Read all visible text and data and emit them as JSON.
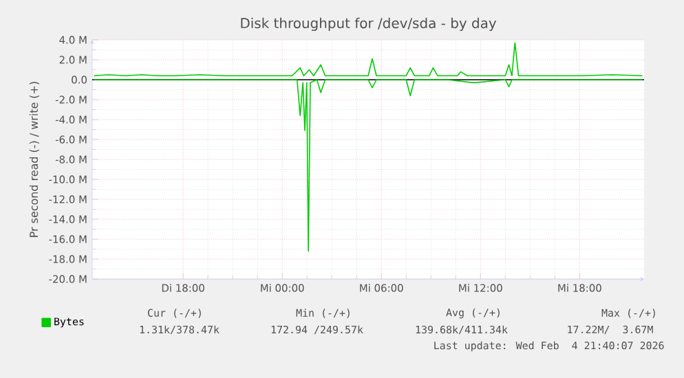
{
  "chart_data": {
    "type": "line",
    "title": "Disk throughput for /dev/sda - by day",
    "ylabel": "Pr second read (-) / write (+)",
    "xlim": [
      "2026-02-03T12:30",
      "2026-02-04T21:54"
    ],
    "ylim": [
      -20,
      4
    ],
    "xticks": [
      {
        "value": "2026-02-03T18:00",
        "label": "Di 18:00"
      },
      {
        "value": "2026-02-04T00:00",
        "label": "Mi 00:00"
      },
      {
        "value": "2026-02-04T06:00",
        "label": "Mi 06:00"
      },
      {
        "value": "2026-02-04T12:00",
        "label": "Mi 12:00"
      },
      {
        "value": "2026-02-04T18:00",
        "label": "Mi 18:00"
      }
    ],
    "yticks": [
      {
        "value": -20,
        "label": "-20.0 M"
      },
      {
        "value": -18,
        "label": "-18.0 M"
      },
      {
        "value": -16,
        "label": "-16.0 M"
      },
      {
        "value": -14,
        "label": "-14.0 M"
      },
      {
        "value": -12,
        "label": "-12.0 M"
      },
      {
        "value": -10,
        "label": "-10.0 M"
      },
      {
        "value": -8,
        "label": "-8.0 M"
      },
      {
        "value": -6,
        "label": "-6.0 M"
      },
      {
        "value": -4,
        "label": "-4.0 M"
      },
      {
        "value": -2,
        "label": "-2.0 M"
      },
      {
        "value": 0,
        "label": "0.0"
      },
      {
        "value": 2,
        "label": "2.0 M"
      },
      {
        "value": 4,
        "label": "4.0 M"
      }
    ],
    "grid": true,
    "legend": "bottom left",
    "marker": "none",
    "line_style": "solid",
    "ref_lines": [
      {
        "axis": "y",
        "value": 0,
        "color": "#000000"
      }
    ],
    "series": [
      {
        "name": "Bytes",
        "color": "#00cc00",
        "x": [
          "2026-02-03T12:36",
          "2026-02-03T13:30",
          "2026-02-03T14:30",
          "2026-02-03T15:30",
          "2026-02-03T16:30",
          "2026-02-03T17:30",
          "2026-02-03T19:00",
          "2026-02-03T20:30",
          "2026-02-03T22:00",
          "2026-02-03T23:30",
          "2026-02-04T00:36",
          "2026-02-04T01:05",
          "2026-02-04T01:18",
          "2026-02-04T01:38",
          "2026-02-04T01:54",
          "2026-02-04T02:20",
          "2026-02-04T02:36",
          "2026-02-04T04:00",
          "2026-02-04T05:12",
          "2026-02-04T05:27",
          "2026-02-04T05:42",
          "2026-02-04T07:30",
          "2026-02-04T07:45",
          "2026-02-04T08:00",
          "2026-02-04T08:54",
          "2026-02-04T09:08",
          "2026-02-04T09:24",
          "2026-02-04T10:36",
          "2026-02-04T10:48",
          "2026-02-04T11:12",
          "2026-02-04T13:30",
          "2026-02-04T13:43",
          "2026-02-04T13:54",
          "2026-02-04T14:05",
          "2026-02-04T14:18",
          "2026-02-04T16:00",
          "2026-02-04T18:00",
          "2026-02-04T20:00",
          "2026-02-04T21:48"
        ],
        "values": [
          0.4,
          0.5,
          0.4,
          0.5,
          0.4,
          0.4,
          0.5,
          0.4,
          0.4,
          0.4,
          0.4,
          1.2,
          0.4,
          1.0,
          0.4,
          1.5,
          0.4,
          0.4,
          0.4,
          2.1,
          0.4,
          0.4,
          1.2,
          0.4,
          0.4,
          1.2,
          0.4,
          0.4,
          0.8,
          0.4,
          0.4,
          1.5,
          0.4,
          3.7,
          0.4,
          0.4,
          0.4,
          0.5,
          0.4
        ]
      },
      {
        "color": "#00cc00",
        "x": [
          "2026-02-03T12:36",
          "2026-02-03T20:00",
          "2026-02-04T00:54",
          "2026-02-04T01:05",
          "2026-02-04T01:15",
          "2026-02-04T01:22",
          "2026-02-04T01:29",
          "2026-02-04T01:35",
          "2026-02-04T01:42",
          "2026-02-04T02:06",
          "2026-02-04T02:20",
          "2026-02-04T02:36",
          "2026-02-04T05:12",
          "2026-02-04T05:27",
          "2026-02-04T05:42",
          "2026-02-04T07:30",
          "2026-02-04T07:45",
          "2026-02-04T08:00",
          "2026-02-04T10:00",
          "2026-02-04T11:36",
          "2026-02-04T13:30",
          "2026-02-04T13:43",
          "2026-02-04T13:54",
          "2026-02-04T21:48"
        ],
        "values": [
          0,
          0,
          0,
          -3.6,
          -0.3,
          -5.1,
          -0.3,
          -17.2,
          -0.3,
          0,
          -1.3,
          0,
          0,
          -0.8,
          0,
          0,
          -1.6,
          0,
          0,
          -0.3,
          0,
          -0.7,
          0,
          0
        ]
      }
    ],
    "annotations": [
      "Cur (-/+)",
      "Min (-/+)",
      "Avg (-/+)",
      "Max (-/+)",
      "1.31k/378.47k",
      "172.94 /249.57k",
      "139.68k/411.34k",
      "17.22M/  3.67M",
      "Last update: Wed Feb  4 21:40:07 2026"
    ]
  }
}
